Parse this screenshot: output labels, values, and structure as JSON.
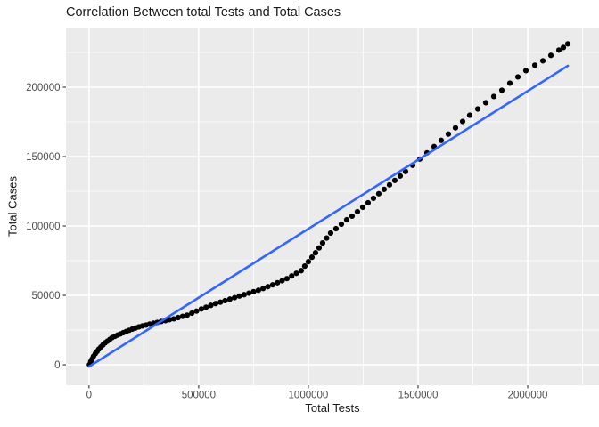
{
  "chart_data": {
    "type": "scatter",
    "title": "Correlation Between total Tests and Total Cases",
    "xlabel": "Total Tests",
    "ylabel": "Total Cases",
    "legend": "none",
    "grid": "on",
    "panel_bg": "#EBEBEB",
    "grid_color": "#FFFFFF",
    "tick_text_color": "#4D4D4D",
    "point_color": "#000000",
    "trend_color": "#3366FF",
    "xlim": [
      -105000,
      2325000
    ],
    "ylim": [
      -14700,
      242300
    ],
    "x_ticks": [
      {
        "value": 0,
        "label": "0"
      },
      {
        "value": 500000,
        "label": "500000"
      },
      {
        "value": 1000000,
        "label": "1000000"
      },
      {
        "value": 1500000,
        "label": "1500000"
      },
      {
        "value": 2000000,
        "label": "2000000"
      }
    ],
    "y_ticks": [
      {
        "value": 0,
        "label": "0"
      },
      {
        "value": 50000,
        "label": "50000"
      },
      {
        "value": 100000,
        "label": "100000"
      },
      {
        "value": 150000,
        "label": "150000"
      },
      {
        "value": 200000,
        "label": "200000"
      }
    ],
    "trend_line": {
      "type": "linear",
      "endpoints": [
        [
          0,
          -1300
        ],
        [
          2182900,
          215400
        ]
      ]
    },
    "points": [
      [
        2000,
        100
      ],
      [
        8100,
        2300
      ],
      [
        14200,
        4200
      ],
      [
        20300,
        6100
      ],
      [
        28500,
        8000
      ],
      [
        36600,
        9600
      ],
      [
        44700,
        11300
      ],
      [
        54100,
        12800
      ],
      [
        63400,
        14300
      ],
      [
        73200,
        15800
      ],
      [
        83700,
        17000
      ],
      [
        94700,
        18300
      ],
      [
        105700,
        19600
      ],
      [
        117900,
        20500
      ],
      [
        130100,
        21400
      ],
      [
        142300,
        22200
      ],
      [
        155700,
        23100
      ],
      [
        169100,
        23900
      ],
      [
        182900,
        24800
      ],
      [
        197600,
        25700
      ],
      [
        212600,
        26500
      ],
      [
        227600,
        27300
      ],
      [
        243900,
        28000
      ],
      [
        260200,
        28600
      ],
      [
        276400,
        29300
      ],
      [
        293900,
        29900
      ],
      [
        311400,
        30500
      ],
      [
        329300,
        31200
      ],
      [
        348000,
        31800
      ],
      [
        367100,
        32500
      ],
      [
        386200,
        33100
      ],
      [
        406500,
        34000
      ],
      [
        426800,
        34900
      ],
      [
        447200,
        35700
      ],
      [
        468700,
        37200
      ],
      [
        490200,
        38700
      ],
      [
        512200,
        40200
      ],
      [
        533700,
        41500
      ],
      [
        555300,
        42800
      ],
      [
        577200,
        44100
      ],
      [
        598800,
        45100
      ],
      [
        620300,
        46200
      ],
      [
        642300,
        47300
      ],
      [
        663800,
        48400
      ],
      [
        685400,
        49500
      ],
      [
        707300,
        50500
      ],
      [
        728900,
        51600
      ],
      [
        750400,
        52700
      ],
      [
        772400,
        53700
      ],
      [
        793900,
        55000
      ],
      [
        815400,
        56300
      ],
      [
        837400,
        57600
      ],
      [
        859000,
        59100
      ],
      [
        880500,
        60600
      ],
      [
        902400,
        62100
      ],
      [
        924000,
        64000
      ],
      [
        945500,
        65900
      ],
      [
        967500,
        67800
      ],
      [
        983700,
        71100
      ],
      [
        1000000,
        74300
      ],
      [
        1016300,
        77500
      ],
      [
        1032500,
        80700
      ],
      [
        1048800,
        84200
      ],
      [
        1065000,
        87800
      ],
      [
        1083300,
        91300
      ],
      [
        1101600,
        94900
      ],
      [
        1126000,
        98100
      ],
      [
        1150400,
        101300
      ],
      [
        1174800,
        104500
      ],
      [
        1199200,
        107100
      ],
      [
        1223600,
        110300
      ],
      [
        1248000,
        113500
      ],
      [
        1272300,
        116700
      ],
      [
        1296700,
        119900
      ],
      [
        1321100,
        123200
      ],
      [
        1345500,
        126400
      ],
      [
        1369900,
        129600
      ],
      [
        1394300,
        132800
      ],
      [
        1418700,
        136000
      ],
      [
        1443100,
        139200
      ],
      [
        1475600,
        143700
      ],
      [
        1508100,
        148200
      ],
      [
        1540600,
        152700
      ],
      [
        1573200,
        157200
      ],
      [
        1605700,
        161700
      ],
      [
        1638200,
        166200
      ],
      [
        1670700,
        170700
      ],
      [
        1703200,
        175300
      ],
      [
        1735700,
        179800
      ],
      [
        1772300,
        184300
      ],
      [
        1808900,
        188800
      ],
      [
        1845500,
        193300
      ],
      [
        1882100,
        197800
      ],
      [
        1918700,
        202900
      ],
      [
        1955300,
        207400
      ],
      [
        1991800,
        211900
      ],
      [
        2032500,
        215800
      ],
      [
        2069100,
        219000
      ],
      [
        2105700,
        222900
      ],
      [
        2142300,
        226700
      ],
      [
        2162600,
        228600
      ],
      [
        2182900,
        231200
      ]
    ]
  }
}
